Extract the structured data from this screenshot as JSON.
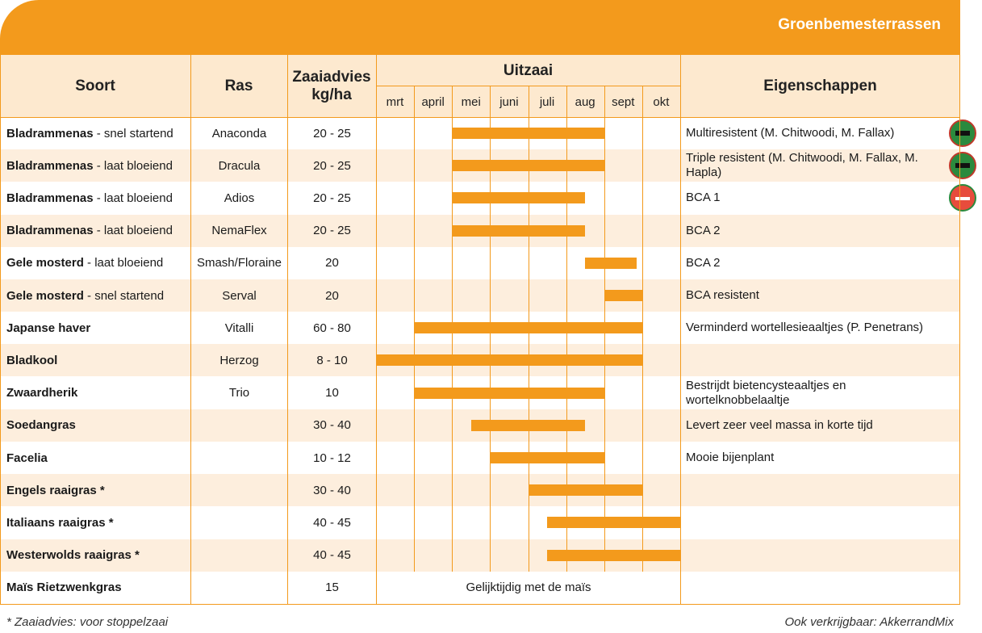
{
  "header": {
    "title": "Groenbemesterrassen"
  },
  "columns": {
    "soort": "Soort",
    "ras": "Ras",
    "zaaiadvies_line1": "Zaaiadvies",
    "zaaiadvies_line2": "kg/ha",
    "uitzaai": "Uitzaai",
    "eigenschappen": "Eigenschappen"
  },
  "months": [
    "mrt",
    "april",
    "mei",
    "juni",
    "juli",
    "aug",
    "sept",
    "okt"
  ],
  "rows": [
    {
      "name": "Bladrammenas",
      "suffix": " - snel startend",
      "ras": "Anaconda",
      "zaai": "20 - 25",
      "sow": [
        2.0,
        6.0
      ],
      "eig": "Multiresistent (M. Chitwoodi, M. Fallax)",
      "badge": "nematode"
    },
    {
      "name": "Bladrammenas",
      "suffix": " - laat bloeiend",
      "ras": "Dracula",
      "zaai": "20 - 25",
      "sow": [
        2.0,
        6.0
      ],
      "eig": "Triple resistent (M. Chitwoodi, M. Fallax, M. Hapla)",
      "badge": "nematode"
    },
    {
      "name": "Bladrammenas",
      "suffix": " - laat bloeiend",
      "ras": "Adios",
      "zaai": "20 - 25",
      "sow": [
        2.0,
        5.5
      ],
      "eig": "BCA 1",
      "badge": "bca"
    },
    {
      "name": "Bladrammenas",
      "suffix": " - laat bloeiend",
      "ras": "NemaFlex",
      "zaai": "20 - 25",
      "sow": [
        2.0,
        5.5
      ],
      "eig": "BCA 2"
    },
    {
      "name": "Gele mosterd",
      "suffix": " - laat bloeiend",
      "ras": "Smash/Floraine",
      "zaai": "20",
      "sow": [
        5.5,
        6.85
      ],
      "eig": "BCA 2"
    },
    {
      "name": "Gele mosterd",
      "suffix": " - snel startend",
      "ras": "Serval",
      "zaai": "20",
      "sow": [
        6.0,
        7.0
      ],
      "eig": "BCA resistent"
    },
    {
      "name": "Japanse haver",
      "suffix": "",
      "ras": "Vitalli",
      "zaai": "60 - 80",
      "sow": [
        1.0,
        7.0
      ],
      "eig": "Verminderd wortellesieaaltjes (P. Penetrans)"
    },
    {
      "name": "Bladkool",
      "suffix": "",
      "ras": "Herzog",
      "zaai": "8 - 10",
      "sow": [
        0.0,
        7.0
      ],
      "eig": ""
    },
    {
      "name": "Zwaardherik",
      "suffix": "",
      "ras": "Trio",
      "zaai": "10",
      "sow": [
        1.0,
        6.0
      ],
      "eig": "Bestrijdt bietencysteaaltjes en wortelknobbelaaltje"
    },
    {
      "name": "Soedangras",
      "suffix": "",
      "ras": "",
      "zaai": "30 - 40",
      "sow": [
        2.5,
        5.5
      ],
      "eig": "Levert zeer veel massa in korte tijd"
    },
    {
      "name": "Facelia",
      "suffix": "",
      "ras": "",
      "zaai": "10 - 12",
      "sow": [
        3.0,
        6.0
      ],
      "eig": "Mooie bijenplant"
    },
    {
      "name": "Engels raaigras *",
      "suffix": "",
      "ras": "",
      "zaai": "30 - 40",
      "sow": [
        4.0,
        7.0
      ],
      "eig": ""
    },
    {
      "name": "Italiaans raaigras *",
      "suffix": "",
      "ras": "",
      "zaai": "40 - 45",
      "sow": [
        4.5,
        8.0
      ],
      "eig": ""
    },
    {
      "name": "Westerwolds raaigras *",
      "suffix": "",
      "ras": "",
      "zaai": "40 - 45",
      "sow": [
        4.5,
        8.0
      ],
      "eig": ""
    },
    {
      "name": "Maïs Rietzwenkgras",
      "suffix": "",
      "ras": "",
      "zaai": "15",
      "sow": null,
      "note": "Gelijktijdig met de maïs",
      "eig": ""
    }
  ],
  "footer": {
    "left": "* Zaaiadvies: voor stoppelzaai",
    "right": "Ook verkrijgbaar: AkkerrandMix"
  },
  "colors": {
    "accent": "#f39a1c",
    "shade": "#fdeedd"
  }
}
